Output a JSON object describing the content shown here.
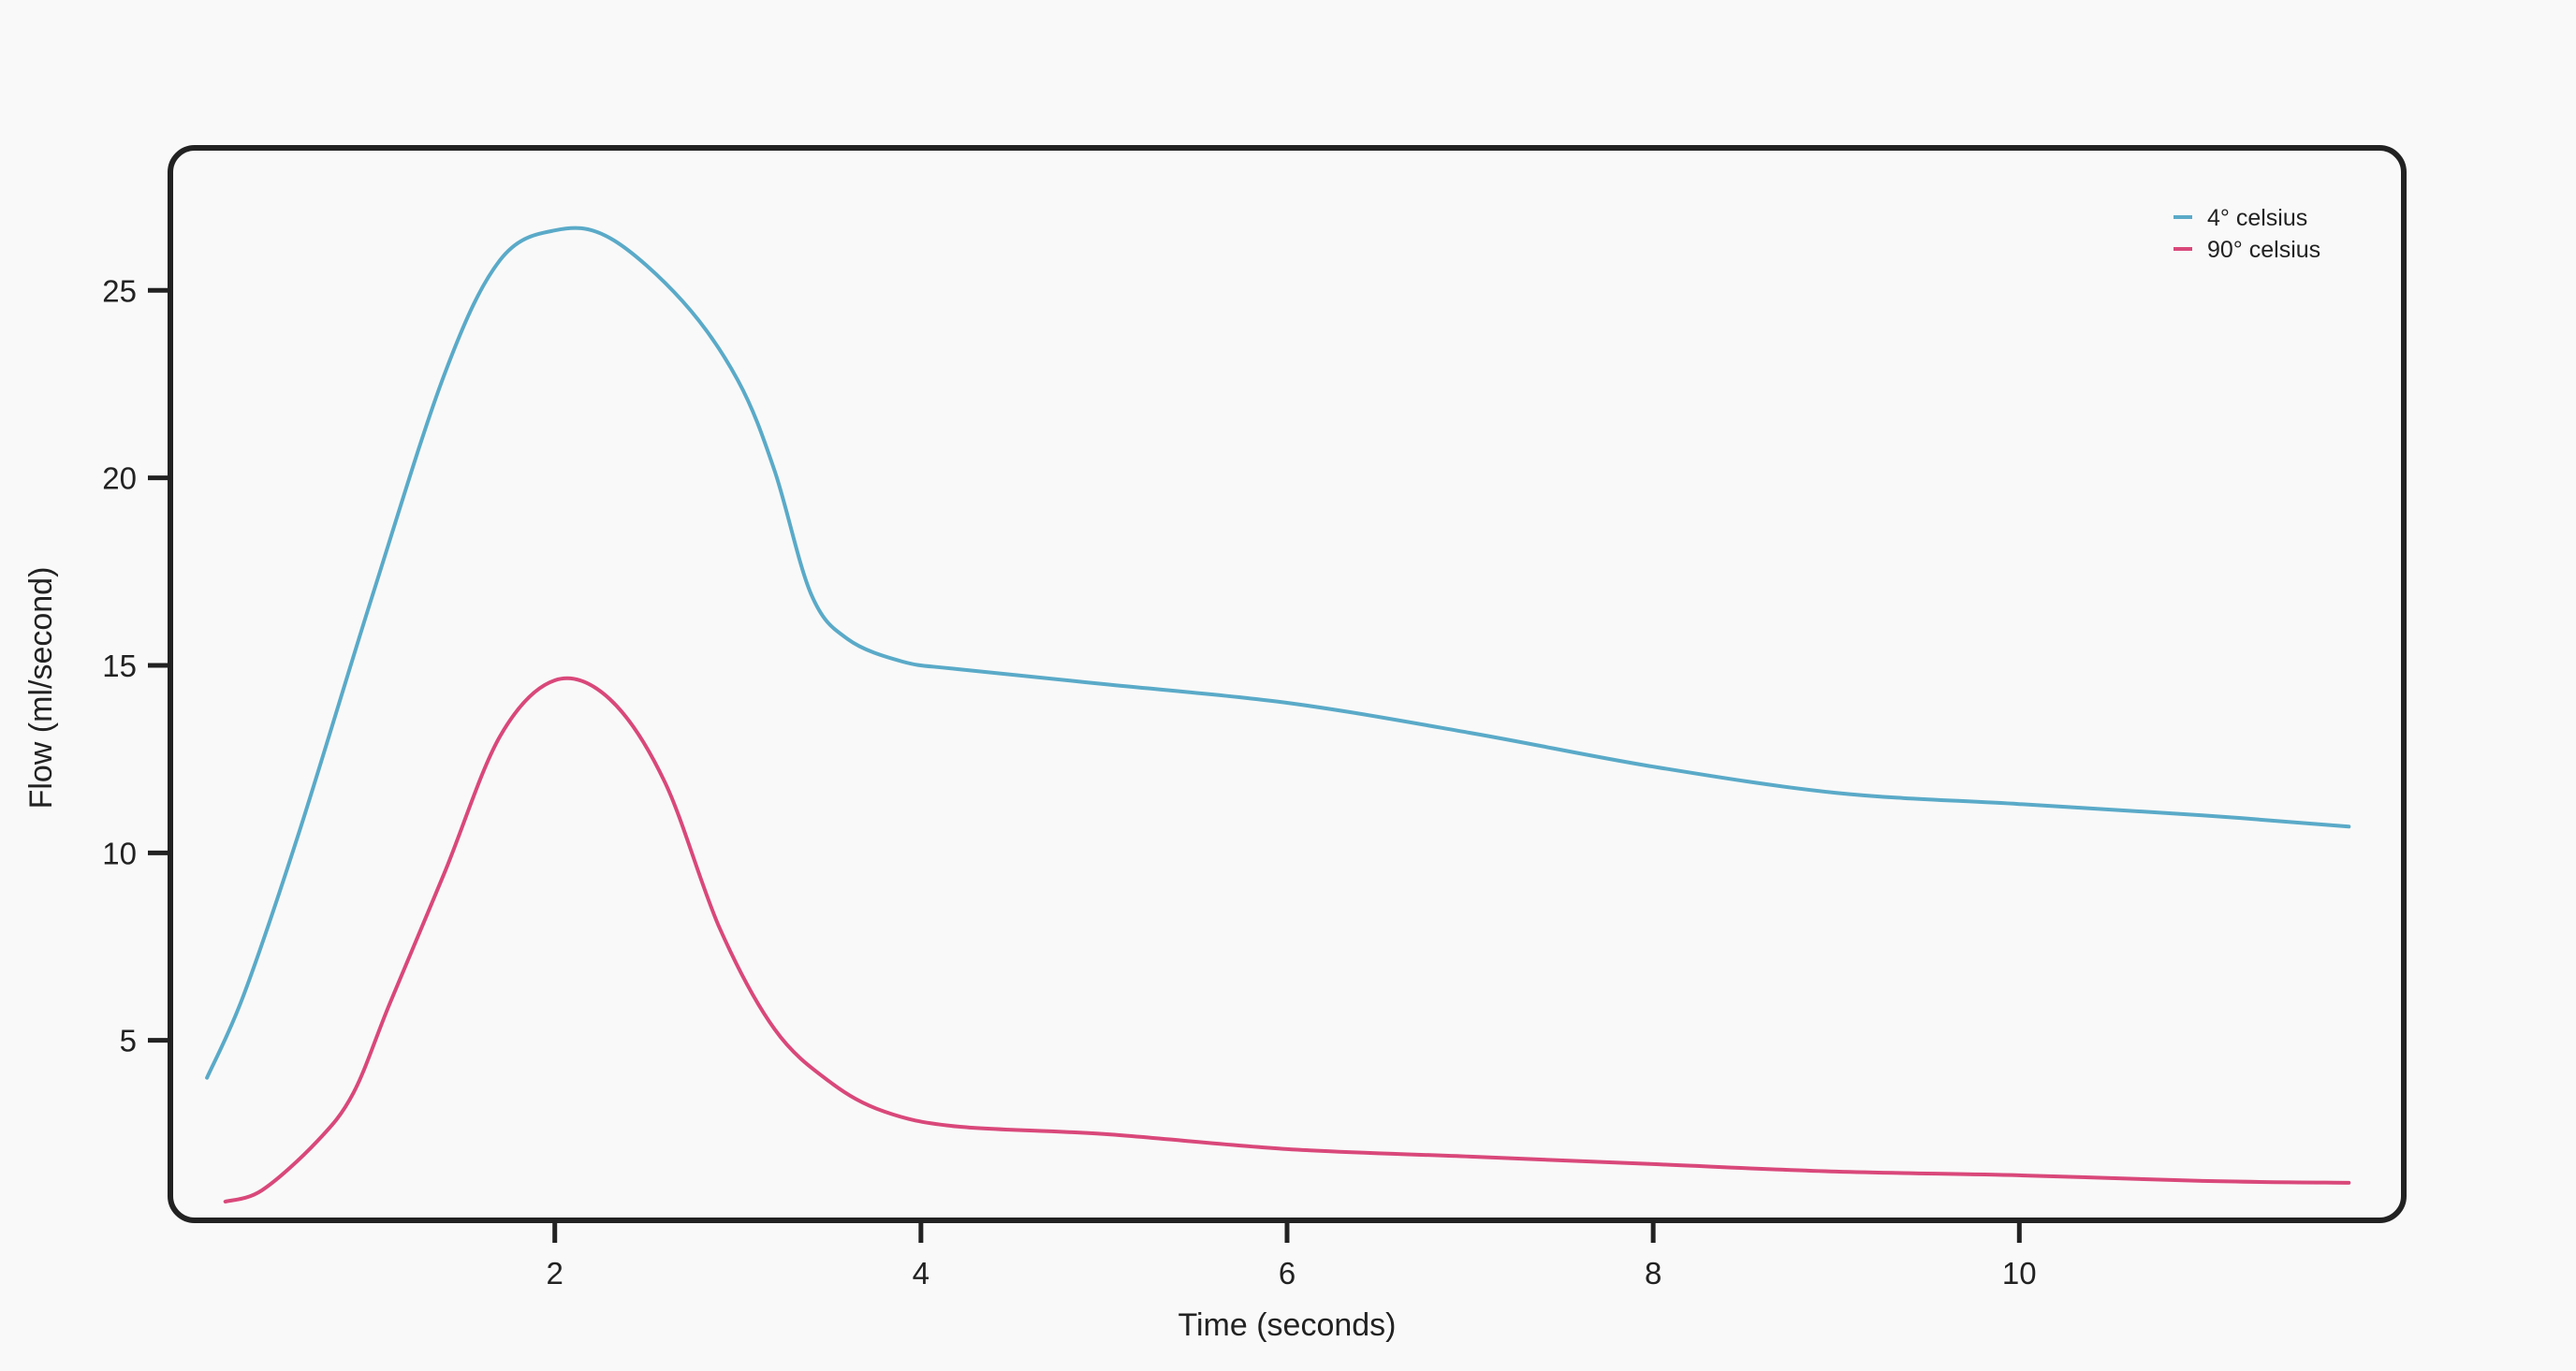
{
  "chart_data": {
    "type": "line",
    "xlabel": "Time (seconds)",
    "ylabel": "Flow (ml/second)",
    "x_ticks": [
      2,
      4,
      6,
      8,
      10
    ],
    "y_ticks": [
      5,
      10,
      15,
      20,
      25
    ],
    "xlim": [
      -0.1,
      12.1
    ],
    "ylim": [
      0.2,
      28.8
    ],
    "grid": false,
    "legend_position": "top-right",
    "series": [
      {
        "name": "4° celsius",
        "color": "#5aaac8",
        "x": [
          0.1,
          0.3,
          0.6,
          1.0,
          1.4,
          1.7,
          2.0,
          2.3,
          2.7,
          3.0,
          3.2,
          3.4,
          3.6,
          3.9,
          4.2,
          5.0,
          6.0,
          7.0,
          8.0,
          9.0,
          10.0,
          11.0,
          11.8
        ],
        "y": [
          4.0,
          6.2,
          10.5,
          16.8,
          22.8,
          25.8,
          26.6,
          26.4,
          24.7,
          22.6,
          20.2,
          16.9,
          15.7,
          15.1,
          14.9,
          14.5,
          14.0,
          13.2,
          12.3,
          11.6,
          11.3,
          11.0,
          10.7
        ]
      },
      {
        "name": "90° celsius",
        "color": "#d9487a",
        "x": [
          0.2,
          0.4,
          0.7,
          0.9,
          1.1,
          1.4,
          1.7,
          2.0,
          2.3,
          2.6,
          2.9,
          3.2,
          3.5,
          3.8,
          4.2,
          5.0,
          6.0,
          7.0,
          8.0,
          9.0,
          10.0,
          11.0,
          11.8
        ],
        "y": [
          0.7,
          1.0,
          2.3,
          3.6,
          6.0,
          9.5,
          13.1,
          14.6,
          14.1,
          11.9,
          8.0,
          5.3,
          3.9,
          3.1,
          2.7,
          2.5,
          2.1,
          1.9,
          1.7,
          1.5,
          1.4,
          1.25,
          1.2
        ]
      }
    ]
  }
}
